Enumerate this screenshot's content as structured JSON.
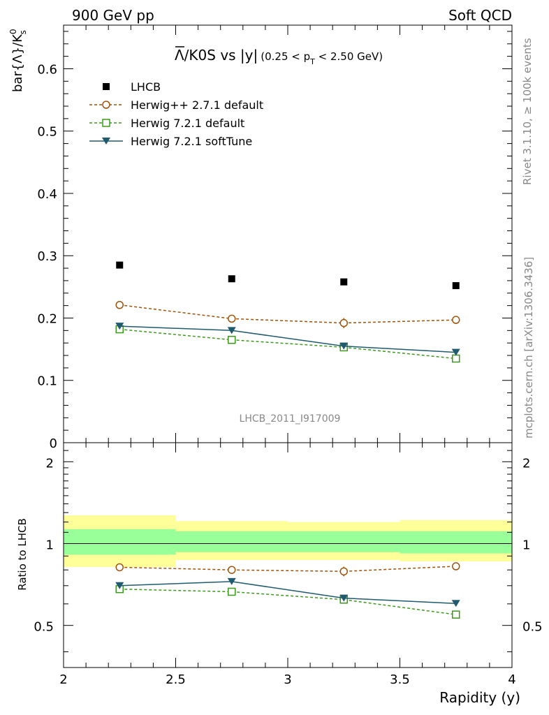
{
  "header": {
    "left": "900 GeV pp",
    "right": "Soft QCD"
  },
  "title": {
    "main": "Λ/K0S vs |y|",
    "range_open": "(0.25 < p",
    "range_sub": "T",
    "range_close": " < 2.50 GeV)"
  },
  "side_labels": {
    "rivet": "Rivet 3.1.10, ≥ 100k events",
    "mcplots": "mcplots.cern.ch [arXiv:1306.3436]"
  },
  "analysis_label": "LHCB_2011_I917009",
  "chart_data": [
    {
      "type": "scatter",
      "ylabel_main": "bar{Λ}/K",
      "ylabel_sup": "0",
      "ylabel_sub": "s",
      "xlim": [
        2.0,
        4.0
      ],
      "ylim": [
        0.0,
        0.67
      ],
      "y_tick_labels": [
        "0",
        "0.1",
        "0.2",
        "0.3",
        "0.4",
        "0.5",
        "0.6"
      ],
      "y_ticks": [
        0,
        0.1,
        0.2,
        0.3,
        0.4,
        0.5,
        0.6
      ],
      "legend_position": "top-left",
      "x": [
        2.25,
        2.75,
        3.25,
        3.75
      ],
      "series": [
        {
          "name": "LHCB",
          "color": "#000000",
          "marker": "filled-square",
          "values": [
            0.285,
            0.263,
            0.258,
            0.252
          ]
        },
        {
          "name": "Herwig++ 2.7.1 default",
          "color": "#a0520a",
          "marker": "open-circle",
          "dash": true,
          "values": [
            0.221,
            0.199,
            0.192,
            0.197
          ],
          "errors": [
            0.005,
            0.006,
            0.008,
            0.006
          ]
        },
        {
          "name": "Herwig 7.2.1 default",
          "color": "#3a9a1a",
          "marker": "open-square",
          "dash": true,
          "values": [
            0.182,
            0.165,
            0.153,
            0.135
          ]
        },
        {
          "name": "Herwig 7.2.1 softTune",
          "color": "#1f5a6e",
          "marker": "filled-triangle-down",
          "dash": false,
          "values": [
            0.187,
            0.18,
            0.155,
            0.145
          ]
        }
      ]
    },
    {
      "type": "scatter",
      "ylabel": "Ratio to LHCB",
      "xlabel": "Rapidity (y)",
      "xlim": [
        2.0,
        4.0
      ],
      "ylim": [
        0.35,
        2.35
      ],
      "log_scale_y": true,
      "x_tick_labels": [
        "2",
        "2.5",
        "3",
        "3.5",
        "4"
      ],
      "x_ticks": [
        2.0,
        2.5,
        3.0,
        3.5,
        4.0
      ],
      "y_tick_labels": [
        "0.5",
        "1",
        "2"
      ],
      "y_ticks": [
        0.5,
        1.0,
        2.0
      ],
      "reference_line": 1.0,
      "bands": [
        {
          "x_from": 2.0,
          "x_to": 2.5,
          "inner": [
            0.91,
            1.13
          ],
          "outer": [
            0.82,
            1.27
          ]
        },
        {
          "x_from": 2.5,
          "x_to": 3.0,
          "inner": [
            0.93,
            1.11
          ],
          "outer": [
            0.87,
            1.21
          ]
        },
        {
          "x_from": 3.0,
          "x_to": 3.5,
          "inner": [
            0.93,
            1.11
          ],
          "outer": [
            0.87,
            1.2
          ]
        },
        {
          "x_from": 3.5,
          "x_to": 4.0,
          "inner": [
            0.92,
            1.11
          ],
          "outer": [
            0.86,
            1.22
          ]
        }
      ],
      "band_colors": {
        "inner": "#99ff99",
        "outer": "#ffff99"
      },
      "x": [
        2.25,
        2.75,
        3.25,
        3.75
      ],
      "series": [
        {
          "name": "Herwig++ 2.7.1 default",
          "color": "#a0520a",
          "marker": "open-circle",
          "dash": true,
          "values": [
            0.818,
            0.8,
            0.79,
            0.825
          ],
          "errors": [
            0.018,
            0.025,
            0.032,
            0.025
          ]
        },
        {
          "name": "Herwig 7.2.1 default",
          "color": "#3a9a1a",
          "marker": "open-square",
          "dash": true,
          "values": [
            0.68,
            0.665,
            0.622,
            0.548
          ]
        },
        {
          "name": "Herwig 7.2.1 softTune",
          "color": "#1f5a6e",
          "marker": "filled-triangle-down",
          "dash": false,
          "values": [
            0.7,
            0.725,
            0.63,
            0.602
          ]
        }
      ]
    }
  ]
}
